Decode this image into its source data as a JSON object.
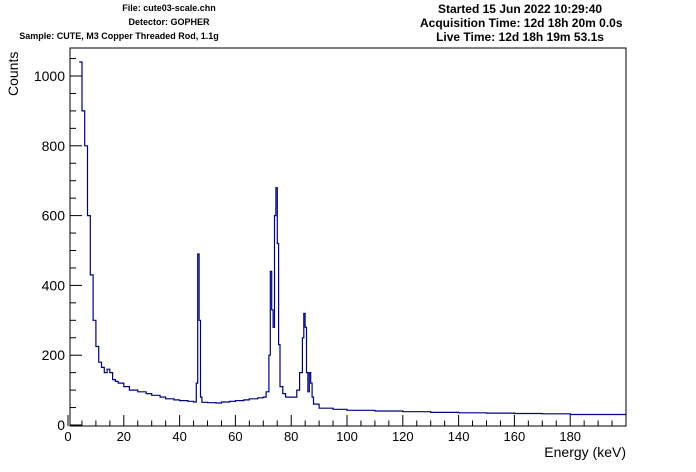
{
  "header": {
    "file": "File: cute03-scale.chn",
    "detector": "Detector: GOPHER",
    "sample": "Sample: CUTE, M3 Copper Threaded Rod, 1.1g",
    "started": "Started 15 Jun 2022 10:29:40",
    "acquisition": "Acquisition Time: 12d 18h 20m 0.0s",
    "live": "Live Time: 12d 18h 19m 53.1s"
  },
  "colors": {
    "line": "#000080",
    "axis": "#000000",
    "background": "#ffffff"
  },
  "chart_data": {
    "type": "line",
    "xlabel": "Energy (keV)",
    "ylabel": "Counts",
    "xlim": [
      0,
      200
    ],
    "ylim": [
      0,
      1000
    ],
    "xticks": [
      0,
      20,
      40,
      60,
      80,
      100,
      120,
      140,
      160,
      180
    ],
    "yticks": [
      0,
      200,
      400,
      600,
      800,
      1000
    ],
    "grid": false,
    "legend": "none",
    "series": [
      {
        "x": [
          4,
          5,
          6,
          7,
          8,
          9,
          10,
          11,
          12,
          13,
          14,
          15,
          16,
          17,
          18,
          20,
          22,
          25,
          28,
          30,
          33,
          35,
          38,
          40,
          43,
          45,
          46,
          46.5,
          47,
          47.5,
          48,
          50,
          53,
          55,
          58,
          60,
          63,
          65,
          68,
          70,
          71,
          72,
          72.5,
          73,
          73.5,
          74,
          74.5,
          75,
          75.5,
          76,
          77,
          78,
          80,
          82,
          83,
          84,
          84.5,
          85,
          85.5,
          86,
          86.5,
          87,
          87.5,
          88,
          90,
          95,
          100,
          110,
          120,
          130,
          140,
          150,
          160,
          170,
          180,
          190,
          200
        ],
        "values": [
          1040,
          900,
          800,
          600,
          430,
          300,
          225,
          180,
          165,
          150,
          160,
          150,
          130,
          125,
          120,
          110,
          100,
          95,
          90,
          85,
          80,
          75,
          72,
          70,
          68,
          66,
          120,
          490,
          300,
          80,
          65,
          64,
          63,
          66,
          68,
          70,
          72,
          75,
          78,
          80,
          95,
          200,
          440,
          330,
          280,
          600,
          680,
          520,
          230,
          110,
          90,
          80,
          80,
          100,
          150,
          250,
          320,
          280,
          150,
          95,
          150,
          120,
          80,
          60,
          48,
          45,
          42,
          40,
          38,
          36,
          35,
          34,
          33,
          32,
          30,
          30,
          28
        ]
      }
    ]
  }
}
